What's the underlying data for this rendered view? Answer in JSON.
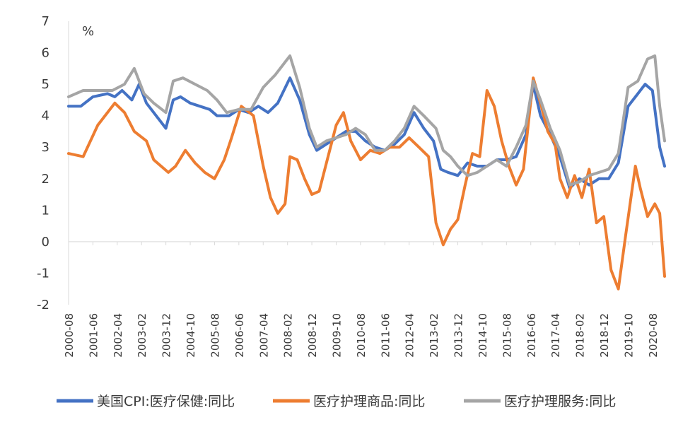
{
  "chart_data": {
    "type": "line",
    "unit": "%",
    "ylim": [
      -2,
      7
    ],
    "y_ticks": [
      "7",
      "6",
      "5",
      "4",
      "3",
      "2",
      "1",
      "0",
      "-1",
      "-2"
    ],
    "x_ticks": [
      "2000-08",
      "2001-06",
      "2002-04",
      "2003-02",
      "2003-12",
      "2004-10",
      "2005-08",
      "2006-06",
      "2007-04",
      "2008-02",
      "2008-12",
      "2009-10",
      "2010-08",
      "2011-06",
      "2012-04",
      "2013-02",
      "2013-12",
      "2014-10",
      "2015-08",
      "2016-06",
      "2017-04",
      "2018-02",
      "2018-12",
      "2019-10",
      "2020-08"
    ],
    "x_start": "2000-08",
    "x_end": "2021-01",
    "grid": false,
    "legend_position": "bottom",
    "series": [
      {
        "name": "美国CPI:医疗保健:同比",
        "color": "#4472C4",
        "points": [
          [
            "2000-08",
            4.3
          ],
          [
            "2001-01",
            4.3
          ],
          [
            "2001-06",
            4.6
          ],
          [
            "2001-12",
            4.7
          ],
          [
            "2002-03",
            4.6
          ],
          [
            "2002-06",
            4.8
          ],
          [
            "2002-10",
            4.5
          ],
          [
            "2003-01",
            5.0
          ],
          [
            "2003-04",
            4.4
          ],
          [
            "2003-07",
            4.1
          ],
          [
            "2003-12",
            3.6
          ],
          [
            "2004-03",
            4.5
          ],
          [
            "2004-06",
            4.6
          ],
          [
            "2004-10",
            4.4
          ],
          [
            "2005-02",
            4.3
          ],
          [
            "2005-06",
            4.2
          ],
          [
            "2005-09",
            4.0
          ],
          [
            "2006-02",
            4.0
          ],
          [
            "2006-06",
            4.2
          ],
          [
            "2006-10",
            4.1
          ],
          [
            "2007-02",
            4.3
          ],
          [
            "2007-06",
            4.1
          ],
          [
            "2007-10",
            4.4
          ],
          [
            "2008-03",
            5.2
          ],
          [
            "2008-07",
            4.5
          ],
          [
            "2008-11",
            3.4
          ],
          [
            "2009-02",
            2.9
          ],
          [
            "2009-06",
            3.1
          ],
          [
            "2009-10",
            3.3
          ],
          [
            "2010-02",
            3.5
          ],
          [
            "2010-06",
            3.5
          ],
          [
            "2010-10",
            3.2
          ],
          [
            "2011-02",
            3.0
          ],
          [
            "2011-06",
            2.9
          ],
          [
            "2011-10",
            3.1
          ],
          [
            "2012-02",
            3.4
          ],
          [
            "2012-06",
            4.1
          ],
          [
            "2012-10",
            3.6
          ],
          [
            "2013-02",
            3.2
          ],
          [
            "2013-05",
            2.3
          ],
          [
            "2013-08",
            2.2
          ],
          [
            "2013-12",
            2.1
          ],
          [
            "2014-04",
            2.5
          ],
          [
            "2014-08",
            2.4
          ],
          [
            "2014-12",
            2.4
          ],
          [
            "2015-04",
            2.6
          ],
          [
            "2015-08",
            2.6
          ],
          [
            "2015-12",
            2.7
          ],
          [
            "2016-04",
            3.4
          ],
          [
            "2016-07",
            5.0
          ],
          [
            "2016-10",
            4.0
          ],
          [
            "2017-02",
            3.4
          ],
          [
            "2017-06",
            2.7
          ],
          [
            "2017-10",
            1.7
          ],
          [
            "2018-02",
            2.0
          ],
          [
            "2018-06",
            1.8
          ],
          [
            "2018-10",
            2.0
          ],
          [
            "2019-02",
            2.0
          ],
          [
            "2019-06",
            2.5
          ],
          [
            "2019-10",
            4.3
          ],
          [
            "2020-02",
            4.7
          ],
          [
            "2020-05",
            5.0
          ],
          [
            "2020-08",
            4.8
          ],
          [
            "2020-11",
            3.0
          ],
          [
            "2021-01",
            2.4
          ]
        ]
      },
      {
        "name": "医疗护理商品:同比",
        "color": "#ED7D31",
        "points": [
          [
            "2000-08",
            2.8
          ],
          [
            "2001-02",
            2.7
          ],
          [
            "2001-08",
            3.7
          ],
          [
            "2002-03",
            4.4
          ],
          [
            "2002-07",
            4.1
          ],
          [
            "2002-11",
            3.5
          ],
          [
            "2003-04",
            3.2
          ],
          [
            "2003-07",
            2.6
          ],
          [
            "2003-10",
            2.4
          ],
          [
            "2004-01",
            2.2
          ],
          [
            "2004-04",
            2.4
          ],
          [
            "2004-08",
            2.9
          ],
          [
            "2004-12",
            2.5
          ],
          [
            "2005-04",
            2.2
          ],
          [
            "2005-08",
            2.0
          ],
          [
            "2005-12",
            2.6
          ],
          [
            "2006-03",
            3.3
          ],
          [
            "2006-07",
            4.3
          ],
          [
            "2006-12",
            4.0
          ],
          [
            "2007-04",
            2.4
          ],
          [
            "2007-07",
            1.4
          ],
          [
            "2007-10",
            0.9
          ],
          [
            "2008-01",
            1.2
          ],
          [
            "2008-03",
            2.7
          ],
          [
            "2008-06",
            2.6
          ],
          [
            "2008-09",
            2.0
          ],
          [
            "2008-12",
            1.5
          ],
          [
            "2009-03",
            1.6
          ],
          [
            "2009-06",
            2.5
          ],
          [
            "2009-10",
            3.7
          ],
          [
            "2010-01",
            4.1
          ],
          [
            "2010-04",
            3.2
          ],
          [
            "2010-08",
            2.6
          ],
          [
            "2010-12",
            2.9
          ],
          [
            "2011-04",
            2.8
          ],
          [
            "2011-08",
            3.0
          ],
          [
            "2011-12",
            3.0
          ],
          [
            "2012-04",
            3.3
          ],
          [
            "2012-08",
            3.0
          ],
          [
            "2012-12",
            2.7
          ],
          [
            "2013-03",
            0.6
          ],
          [
            "2013-06",
            -0.1
          ],
          [
            "2013-09",
            0.4
          ],
          [
            "2013-12",
            0.7
          ],
          [
            "2014-03",
            1.8
          ],
          [
            "2014-06",
            2.8
          ],
          [
            "2014-09",
            2.7
          ],
          [
            "2014-12",
            4.8
          ],
          [
            "2015-03",
            4.3
          ],
          [
            "2015-06",
            3.2
          ],
          [
            "2015-09",
            2.4
          ],
          [
            "2015-12",
            1.8
          ],
          [
            "2016-03",
            2.3
          ],
          [
            "2016-07",
            5.2
          ],
          [
            "2016-10",
            4.4
          ],
          [
            "2017-01",
            3.5
          ],
          [
            "2017-04",
            3.1
          ],
          [
            "2017-06",
            2.0
          ],
          [
            "2017-09",
            1.4
          ],
          [
            "2017-12",
            2.1
          ],
          [
            "2018-03",
            1.4
          ],
          [
            "2018-06",
            2.3
          ],
          [
            "2018-09",
            0.6
          ],
          [
            "2018-12",
            0.8
          ],
          [
            "2019-03",
            -0.9
          ],
          [
            "2019-06",
            -1.5
          ],
          [
            "2019-09",
            0.2
          ],
          [
            "2020-01",
            2.4
          ],
          [
            "2020-03",
            1.7
          ],
          [
            "2020-06",
            0.8
          ],
          [
            "2020-09",
            1.2
          ],
          [
            "2020-11",
            0.9
          ],
          [
            "2021-01",
            -1.1
          ]
        ]
      },
      {
        "name": "医疗护理服务:同比",
        "color": "#A5A5A5",
        "points": [
          [
            "2000-08",
            4.6
          ],
          [
            "2001-02",
            4.8
          ],
          [
            "2001-08",
            4.8
          ],
          [
            "2002-02",
            4.8
          ],
          [
            "2002-07",
            5.0
          ],
          [
            "2002-11",
            5.5
          ],
          [
            "2003-03",
            4.7
          ],
          [
            "2003-07",
            4.4
          ],
          [
            "2003-12",
            4.1
          ],
          [
            "2004-03",
            5.1
          ],
          [
            "2004-07",
            5.2
          ],
          [
            "2004-12",
            5.0
          ],
          [
            "2005-05",
            4.8
          ],
          [
            "2005-09",
            4.5
          ],
          [
            "2006-01",
            4.1
          ],
          [
            "2006-06",
            4.2
          ],
          [
            "2006-11",
            4.2
          ],
          [
            "2007-04",
            4.9
          ],
          [
            "2007-09",
            5.3
          ],
          [
            "2008-01",
            5.7
          ],
          [
            "2008-03",
            5.9
          ],
          [
            "2008-07",
            4.9
          ],
          [
            "2008-11",
            3.6
          ],
          [
            "2009-02",
            3.0
          ],
          [
            "2009-06",
            3.2
          ],
          [
            "2009-10",
            3.3
          ],
          [
            "2010-02",
            3.4
          ],
          [
            "2010-06",
            3.6
          ],
          [
            "2010-10",
            3.4
          ],
          [
            "2011-02",
            2.9
          ],
          [
            "2011-06",
            2.9
          ],
          [
            "2011-10",
            3.2
          ],
          [
            "2012-02",
            3.6
          ],
          [
            "2012-06",
            4.3
          ],
          [
            "2012-10",
            4.0
          ],
          [
            "2013-03",
            3.6
          ],
          [
            "2013-06",
            2.9
          ],
          [
            "2013-09",
            2.7
          ],
          [
            "2013-12",
            2.4
          ],
          [
            "2014-04",
            2.1
          ],
          [
            "2014-08",
            2.2
          ],
          [
            "2014-12",
            2.4
          ],
          [
            "2015-04",
            2.6
          ],
          [
            "2015-08",
            2.4
          ],
          [
            "2015-12",
            3.0
          ],
          [
            "2016-04",
            3.7
          ],
          [
            "2016-07",
            5.1
          ],
          [
            "2016-10",
            4.5
          ],
          [
            "2017-02",
            3.6
          ],
          [
            "2017-06",
            2.9
          ],
          [
            "2017-10",
            1.8
          ],
          [
            "2018-02",
            1.9
          ],
          [
            "2018-06",
            2.1
          ],
          [
            "2018-10",
            2.2
          ],
          [
            "2019-02",
            2.3
          ],
          [
            "2019-06",
            2.8
          ],
          [
            "2019-10",
            4.9
          ],
          [
            "2020-02",
            5.1
          ],
          [
            "2020-06",
            5.8
          ],
          [
            "2020-09",
            5.9
          ],
          [
            "2020-11",
            4.3
          ],
          [
            "2021-01",
            3.2
          ]
        ]
      }
    ]
  }
}
